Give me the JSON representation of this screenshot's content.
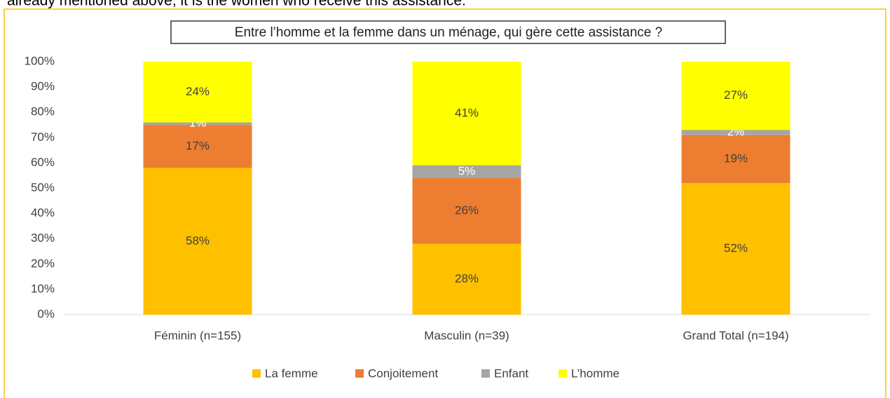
{
  "context_text": "already mentioned above, it is the women who receive this assistance.",
  "chart_data": {
    "type": "stacked_bar",
    "title": "Entre l’homme et la femme dans un ménage, qui gère cette assistance ?",
    "categories": [
      "Féminin (n=155)",
      "Masculin (n=39)",
      "Grand Total (n=194)"
    ],
    "series": [
      {
        "name": "La femme",
        "color": "#ffc000",
        "label_color": "#404040",
        "values": [
          58,
          28,
          52
        ],
        "value_labels": [
          "58%",
          "28%",
          "52%"
        ]
      },
      {
        "name": "Conjoitement",
        "color": "#ed7d31",
        "label_color": "#404040",
        "values": [
          17,
          26,
          19
        ],
        "value_labels": [
          "17%",
          "26%",
          "19%"
        ]
      },
      {
        "name": "Enfant",
        "color": "#a5a5a5",
        "label_color": "#ffffff",
        "values": [
          1,
          5,
          2
        ],
        "value_labels": [
          "1%",
          "5%",
          "2%"
        ]
      },
      {
        "name": "L’homme",
        "color": "#ffff00",
        "label_color": "#404040",
        "values": [
          24,
          41,
          27
        ],
        "value_labels": [
          "24%",
          "41%",
          "27%"
        ]
      }
    ],
    "ylim": [
      0,
      100
    ],
    "yticks": [
      {
        "value": 0,
        "label": "0%"
      },
      {
        "value": 10,
        "label": "10%"
      },
      {
        "value": 20,
        "label": "20%"
      },
      {
        "value": 30,
        "label": "30%"
      },
      {
        "value": 40,
        "label": "40%"
      },
      {
        "value": 50,
        "label": "50%"
      },
      {
        "value": 60,
        "label": "60%"
      },
      {
        "value": 70,
        "label": "70%"
      },
      {
        "value": 80,
        "label": "80%"
      },
      {
        "value": 90,
        "label": "90%"
      },
      {
        "value": 100,
        "label": "100%"
      }
    ],
    "legend": "bottom"
  }
}
